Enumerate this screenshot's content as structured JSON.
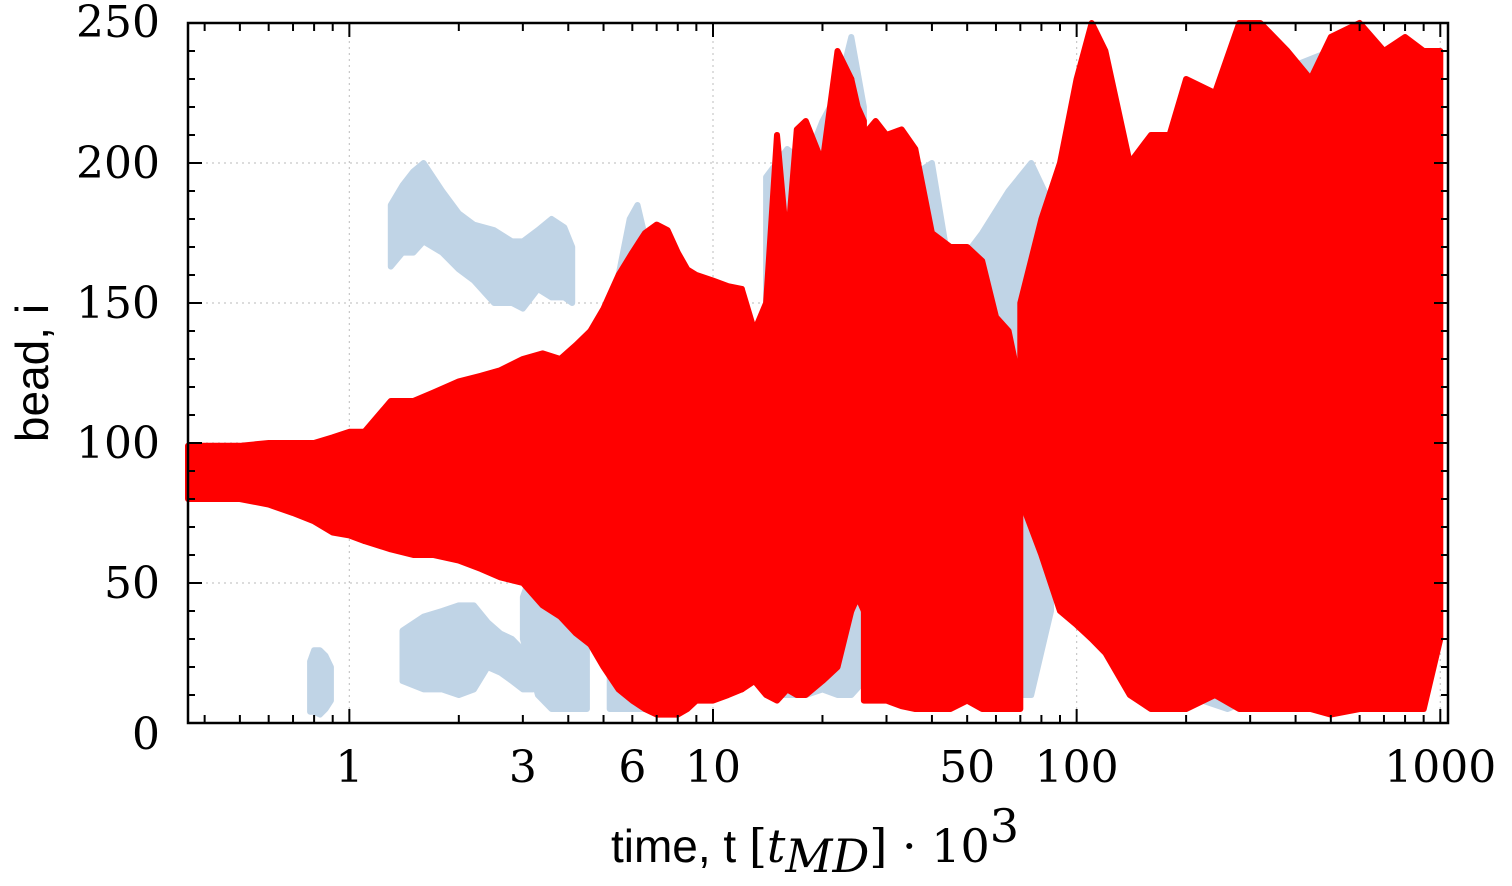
{
  "chart_data": {
    "type": "line",
    "xscale": "log",
    "xlim": [
      0.36,
      1050
    ],
    "ylim": [
      0,
      250
    ],
    "grid": true,
    "x_major_ticks": [
      1,
      3,
      6,
      10,
      50,
      100,
      1000
    ],
    "x_tick_labels": [
      "1",
      "3",
      "6",
      "10",
      "50",
      "100",
      "1000"
    ],
    "y_ticks": [
      0,
      50,
      100,
      150,
      200,
      250
    ],
    "y_tick_labels": [
      "0",
      "50",
      "100",
      "150",
      "200",
      "250"
    ],
    "xlabel": {
      "prefix": "time, t ",
      "open_bracket": "[",
      "var": "t",
      "subscript": "MD",
      "close_bracket": "]",
      "dot": " · ",
      "base": "10",
      "exponent": "3"
    },
    "ylabel": "bead, i",
    "series": [
      {
        "color": "#c0d4e6",
        "segments": [
          {
            "x": [
              0.78,
              0.8,
              0.83,
              0.86,
              0.89
            ],
            "lo": [
              4,
              4,
              3,
              5,
              8
            ],
            "hi": [
              22,
              26,
              26,
              24,
              20
            ]
          },
          {
            "x": [
              1.3,
              1.4,
              1.5,
              1.6,
              1.8,
              2.0,
              2.2,
              2.5,
              2.8,
              3.0,
              3.3,
              3.6,
              3.9,
              4.1
            ],
            "lo": [
              163,
              168,
              168,
              172,
              168,
              162,
              158,
              150,
              150,
              148,
              155,
              152,
              152,
              150
            ],
            "hi": [
              185,
              192,
              197,
              200,
              190,
              182,
              178,
              176,
              172,
              172,
              176,
              180,
              177,
              170
            ]
          },
          {
            "x": [
              1.4,
              1.6,
              1.8,
              2.0,
              2.2,
              2.4,
              2.6,
              2.8,
              3.0,
              3.2
            ],
            "lo": [
              15,
              12,
              12,
              10,
              12,
              20,
              18,
              15,
              12,
              12
            ],
            "hi": [
              33,
              38,
              40,
              42,
              42,
              36,
              32,
              30,
              26,
              24
            ]
          },
          {
            "x": [
              3.0,
              3.3,
              3.6,
              3.9,
              4.2,
              4.5
            ],
            "lo": [
              30,
              10,
              5,
              5,
              5,
              5
            ],
            "hi": [
              45,
              60,
              62,
              60,
              58,
              50
            ]
          },
          {
            "x": [
              5.2,
              5.5,
              5.9,
              6.2,
              6.6
            ],
            "lo": [
              5,
              5,
              5,
              5,
              5
            ],
            "hi": [
              80,
              160,
              180,
              185,
              170
            ]
          },
          {
            "x": [
              14,
              16,
              18,
              20,
              22,
              24,
              26
            ],
            "lo": [
              10,
              10,
              10,
              12,
              10,
              10,
              15
            ],
            "hi": [
              195,
              205,
              200,
              215,
              225,
              245,
              220
            ]
          },
          {
            "x": [
              35,
              40,
              45,
              55,
              65,
              75,
              85
            ],
            "lo": [
              8,
              10,
              10,
              8,
              10,
              10,
              40
            ],
            "hi": [
              195,
              200,
              160,
              175,
              190,
              200,
              185
            ]
          },
          {
            "x": [
              110,
              130,
              160,
              200,
              260,
              320,
              400,
              500,
              600,
              700,
              800,
              900
            ],
            "lo": [
              90,
              95,
              30,
              10,
              5,
              10,
              5,
              8,
              10,
              5,
              10,
              8
            ],
            "hi": [
              180,
              190,
              200,
              200,
              230,
              210,
              235,
              240,
              250,
              240,
              230,
              235
            ]
          }
        ]
      },
      {
        "color": "#ff0000",
        "segments": [
          {
            "x": [
              0.36,
              0.4,
              0.5,
              0.6,
              0.7,
              0.8,
              0.9,
              1.0,
              1.1
            ],
            "lo": [
              80,
              80,
              80,
              78,
              75,
              72,
              68,
              67,
              65
            ],
            "hi": [
              99,
              99,
              99,
              100,
              100,
              100,
              102,
              104,
              104
            ]
          },
          {
            "x": [
              1.1,
              1.3,
              1.5,
              1.7,
              2.0,
              2.3,
              2.6,
              3.0,
              3.4,
              3.8,
              4.2,
              4.6
            ],
            "lo": [
              65,
              62,
              60,
              60,
              58,
              55,
              52,
              50,
              42,
              38,
              32,
              28
            ],
            "hi": [
              104,
              115,
              115,
              118,
              122,
              124,
              126,
              130,
              132,
              130,
              135,
              140
            ]
          },
          {
            "x": [
              4.6,
              5.0,
              5.5,
              6.0,
              6.5,
              7.0,
              7.5,
              8.0,
              8.5,
              9.0,
              10,
              11,
              12
            ],
            "lo": [
              28,
              20,
              12,
              8,
              5,
              3,
              3,
              3,
              5,
              8,
              8,
              10,
              12
            ],
            "hi": [
              140,
              148,
              160,
              168,
              175,
              178,
              176,
              168,
              162,
              160,
              158,
              156,
              155
            ]
          },
          {
            "x": [
              12,
              13,
              14,
              15,
              16,
              17,
              18,
              20,
              22,
              24
            ],
            "lo": [
              12,
              15,
              10,
              8,
              12,
              10,
              10,
              15,
              20,
              40
            ],
            "hi": [
              155,
              140,
              150,
              210,
              170,
              212,
              215,
              200,
              240,
              230
            ]
          },
          {
            "x": [
              24,
              25,
              26
            ],
            "lo": [
              40,
              45,
              40
            ],
            "hi": [
              230,
              220,
              215
            ]
          },
          {
            "x": [
              26,
              28,
              30,
              33,
              36,
              40,
              45,
              50,
              55,
              60,
              65,
              70
            ],
            "lo": [
              8,
              8,
              8,
              6,
              5,
              5,
              5,
              8,
              5,
              5,
              5,
              5
            ],
            "hi": [
              210,
              215,
              210,
              212,
              205,
              175,
              170,
              170,
              165,
              145,
              140,
              120
            ]
          },
          {
            "x": [
              70,
              80,
              90,
              100,
              110,
              120,
              140,
              160,
              180,
              200,
              240,
              280,
              320,
              380,
              440,
              500,
              600,
              700,
              800,
              900,
              1000
            ],
            "lo": [
              80,
              60,
              40,
              35,
              30,
              25,
              10,
              5,
              5,
              5,
              10,
              5,
              5,
              5,
              5,
              3,
              5,
              5,
              5,
              5,
              30
            ],
            "hi": [
              150,
              180,
              200,
              230,
              250,
              240,
              200,
              210,
              210,
              230,
              225,
              250,
              250,
              240,
              230,
              245,
              250,
              240,
              245,
              240,
              240
            ]
          }
        ]
      }
    ]
  }
}
